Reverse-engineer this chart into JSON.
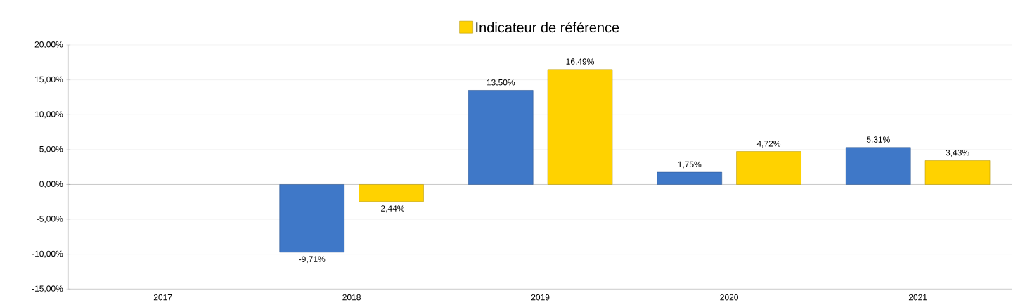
{
  "chart_data": {
    "type": "bar",
    "categories": [
      "2017",
      "2018",
      "2019",
      "2020",
      "2021"
    ],
    "series": [
      {
        "color": "#3f78c8",
        "values": [
          null,
          -9.71,
          13.5,
          1.75,
          5.31
        ],
        "value_labels": [
          null,
          "-9,71%",
          "13,50%",
          "1,75%",
          "5,31%"
        ]
      },
      {
        "name": "Indicateur de référence",
        "color": "#ffd200",
        "values": [
          null,
          -2.44,
          16.49,
          4.72,
          3.43
        ],
        "value_labels": [
          null,
          "-2,44%",
          "16,49%",
          "4,72%",
          "3,43%"
        ]
      }
    ],
    "ylim": [
      -15,
      20
    ],
    "yticks": [
      {
        "value": -15,
        "label": "-15,00%"
      },
      {
        "value": -10,
        "label": "-10,00%"
      },
      {
        "value": -5,
        "label": "-5,00%"
      },
      {
        "value": 0,
        "label": "0,00%"
      },
      {
        "value": 5,
        "label": "5,00%"
      },
      {
        "value": 10,
        "label": "10,00%"
      },
      {
        "value": 15,
        "label": "15,00%"
      },
      {
        "value": 20,
        "label": "20,00%"
      }
    ],
    "grid": "y",
    "legend": "top"
  }
}
